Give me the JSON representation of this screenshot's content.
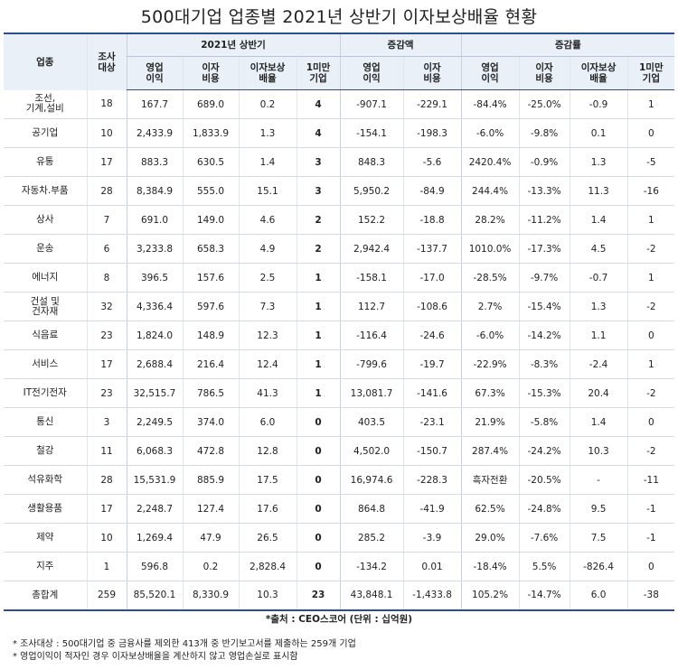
{
  "title": "500대기업 업종별 2021년 상반기 이자보상배율 현황",
  "header": {
    "industry": "업종",
    "survey_count": "조사\n대상",
    "group_2021h1": "2021년 상반기",
    "group_change_amount": "증감액",
    "group_change_rate": "증감률",
    "sub": [
      "영업\n이익",
      "이자\n비용",
      "이자보상\n배율",
      "1미만\n기업",
      "영업\n이익",
      "이자\n비용",
      "영업\n이익",
      "이자\n비용",
      "이자보상\n배율",
      "1미만\n기업"
    ]
  },
  "rows": [
    {
      "industry": "조선,\n기계,설비",
      "count": "18",
      "op": "167.7",
      "int": "689.0",
      "icr": "0.2",
      "under1": "4",
      "d_op": "-907.1",
      "d_int": "-229.1",
      "r_op": "-84.4%",
      "r_int": "-25.0%",
      "r_icr": "-0.9",
      "r_under1": "1"
    },
    {
      "industry": "공기업",
      "count": "10",
      "op": "2,433.9",
      "int": "1,833.9",
      "icr": "1.3",
      "under1": "4",
      "d_op": "-154.1",
      "d_int": "-198.3",
      "r_op": "-6.0%",
      "r_int": "-9.8%",
      "r_icr": "0.1",
      "r_under1": "0"
    },
    {
      "industry": "유통",
      "count": "17",
      "op": "883.3",
      "int": "630.5",
      "icr": "1.4",
      "under1": "3",
      "d_op": "848.3",
      "d_int": "-5.6",
      "r_op": "2420.4%",
      "r_int": "-0.9%",
      "r_icr": "1.3",
      "r_under1": "-5"
    },
    {
      "industry": "자동차.부품",
      "count": "28",
      "op": "8,384.9",
      "int": "555.0",
      "icr": "15.1",
      "under1": "3",
      "d_op": "5,950.2",
      "d_int": "-84.9",
      "r_op": "244.4%",
      "r_int": "-13.3%",
      "r_icr": "11.3",
      "r_under1": "-16"
    },
    {
      "industry": "상사",
      "count": "7",
      "op": "691.0",
      "int": "149.0",
      "icr": "4.6",
      "under1": "2",
      "d_op": "152.2",
      "d_int": "-18.8",
      "r_op": "28.2%",
      "r_int": "-11.2%",
      "r_icr": "1.4",
      "r_under1": "1"
    },
    {
      "industry": "운송",
      "count": "6",
      "op": "3,233.8",
      "int": "658.3",
      "icr": "4.9",
      "under1": "2",
      "d_op": "2,942.4",
      "d_int": "-137.7",
      "r_op": "1010.0%",
      "r_int": "-17.3%",
      "r_icr": "4.5",
      "r_under1": "-2"
    },
    {
      "industry": "에너지",
      "count": "8",
      "op": "396.5",
      "int": "157.6",
      "icr": "2.5",
      "under1": "1",
      "d_op": "-158.1",
      "d_int": "-17.0",
      "r_op": "-28.5%",
      "r_int": "-9.7%",
      "r_icr": "-0.7",
      "r_under1": "1"
    },
    {
      "industry": "건설 및\n건자재",
      "count": "32",
      "op": "4,336.4",
      "int": "597.6",
      "icr": "7.3",
      "under1": "1",
      "d_op": "112.7",
      "d_int": "-108.6",
      "r_op": "2.7%",
      "r_int": "-15.4%",
      "r_icr": "1.3",
      "r_under1": "-2"
    },
    {
      "industry": "식음료",
      "count": "23",
      "op": "1,824.0",
      "int": "148.9",
      "icr": "12.3",
      "under1": "1",
      "d_op": "-116.4",
      "d_int": "-24.6",
      "r_op": "-6.0%",
      "r_int": "-14.2%",
      "r_icr": "1.1",
      "r_under1": "0"
    },
    {
      "industry": "서비스",
      "count": "17",
      "op": "2,688.4",
      "int": "216.4",
      "icr": "12.4",
      "under1": "1",
      "d_op": "-799.6",
      "d_int": "-19.7",
      "r_op": "-22.9%",
      "r_int": "-8.3%",
      "r_icr": "-2.4",
      "r_under1": "1"
    },
    {
      "industry": "IT전기전자",
      "count": "23",
      "op": "32,515.7",
      "int": "786.5",
      "icr": "41.3",
      "under1": "1",
      "d_op": "13,081.7",
      "d_int": "-141.6",
      "r_op": "67.3%",
      "r_int": "-15.3%",
      "r_icr": "20.4",
      "r_under1": "-2"
    },
    {
      "industry": "통신",
      "count": "3",
      "op": "2,249.5",
      "int": "374.0",
      "icr": "6.0",
      "under1": "0",
      "d_op": "403.5",
      "d_int": "-23.1",
      "r_op": "21.9%",
      "r_int": "-5.8%",
      "r_icr": "1.4",
      "r_under1": "0"
    },
    {
      "industry": "철강",
      "count": "11",
      "op": "6,068.3",
      "int": "472.8",
      "icr": "12.8",
      "under1": "0",
      "d_op": "4,502.0",
      "d_int": "-150.7",
      "r_op": "287.4%",
      "r_int": "-24.2%",
      "r_icr": "10.3",
      "r_under1": "-2"
    },
    {
      "industry": "석유화학",
      "count": "28",
      "op": "15,531.9",
      "int": "885.9",
      "icr": "17.5",
      "under1": "0",
      "d_op": "16,974.6",
      "d_int": "-228.3",
      "r_op": "흑자전환",
      "r_int": "-20.5%",
      "r_icr": "-",
      "r_under1": "-11"
    },
    {
      "industry": "생활용품",
      "count": "17",
      "op": "2,248.7",
      "int": "127.4",
      "icr": "17.6",
      "under1": "0",
      "d_op": "864.8",
      "d_int": "-41.9",
      "r_op": "62.5%",
      "r_int": "-24.8%",
      "r_icr": "9.5",
      "r_under1": "-1"
    },
    {
      "industry": "제약",
      "count": "10",
      "op": "1,269.4",
      "int": "47.9",
      "icr": "26.5",
      "under1": "0",
      "d_op": "285.2",
      "d_int": "-3.9",
      "r_op": "29.0%",
      "r_int": "-7.6%",
      "r_icr": "7.5",
      "r_under1": "-1"
    },
    {
      "industry": "지주",
      "count": "1",
      "op": "596.8",
      "int": "0.2",
      "icr": "2,828.4",
      "under1": "0",
      "d_op": "-134.2",
      "d_int": "0.01",
      "r_op": "-18.4%",
      "r_int": "5.5%",
      "r_icr": "-826.4",
      "r_under1": "0"
    },
    {
      "industry": "총합계",
      "count": "259",
      "op": "85,520.1",
      "int": "8,330.9",
      "icr": "10.3",
      "under1": "23",
      "d_op": "43,848.1",
      "d_int": "-1,433.8",
      "r_op": "105.2%",
      "r_int": "-14.7%",
      "r_icr": "6.0",
      "r_under1": "-38"
    }
  ],
  "source": "*출처 : CEO스코어 (단위 : 십억원)",
  "notes": [
    "* 조사대상 : 500대기업 중 금융사를 제외한 413개 중 반기보고서를 제출하는 259개 기업",
    "* 영업이익이 적자인 경우 이자보상배율을 계산하지 않고 영업손실로 표시함"
  ]
}
